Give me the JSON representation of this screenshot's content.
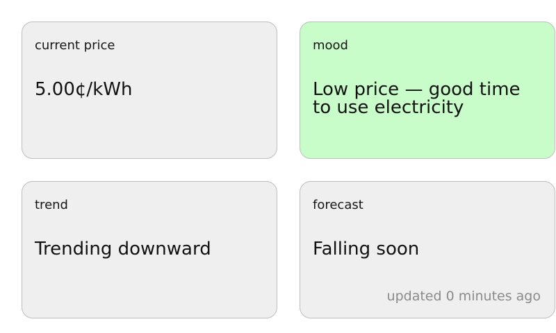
{
  "cards": {
    "current_price": {
      "label": "current price",
      "value": "5.00¢/kWh"
    },
    "mood": {
      "label": "mood",
      "value": "Low price — good time to use electricity",
      "background_color": "#c8fcc8"
    },
    "trend": {
      "label": "trend",
      "value": "Trending downward"
    },
    "forecast": {
      "label": "forecast",
      "value": "Falling soon",
      "updated": "updated 0 minutes ago"
    }
  },
  "colors": {
    "card_background": "#efefef",
    "card_border": "#bdbdbd",
    "muted_text": "#8a8a8a"
  }
}
